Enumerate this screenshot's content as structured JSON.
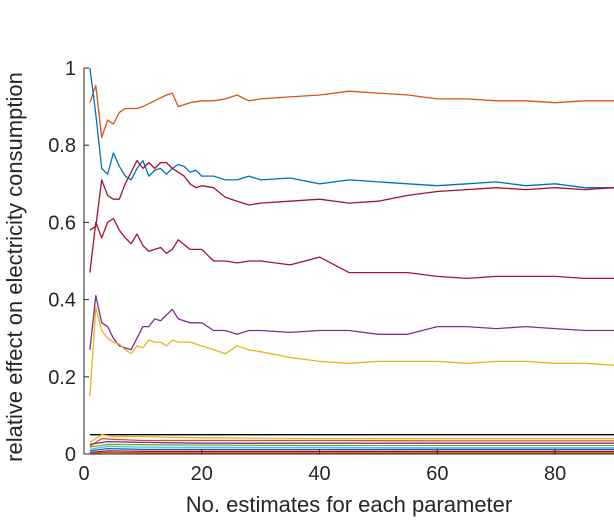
{
  "chart_data": {
    "type": "line",
    "title": "",
    "xlabel": "No. estimates for each parameter",
    "ylabel": "relative effect on electricity consumption",
    "xlim": [
      0,
      90
    ],
    "ylim": [
      0,
      1
    ],
    "xticks": [
      0,
      20,
      40,
      60,
      80
    ],
    "yticks": [
      0,
      0.2,
      0.4,
      0.6,
      0.8,
      1
    ],
    "xtick_labels": [
      "0",
      "20",
      "40",
      "60",
      "80"
    ],
    "ytick_labels": [
      "0",
      "0.2",
      "0.4",
      "0.6",
      "0.8",
      "1"
    ],
    "grid": false,
    "legend": "none",
    "series": [
      {
        "color": "#D95319",
        "x": [
          1,
          2,
          3,
          4,
          5,
          6,
          7,
          8,
          9,
          10,
          12,
          14,
          15,
          16,
          18,
          20,
          22,
          24,
          26,
          28,
          30,
          35,
          40,
          45,
          50,
          55,
          60,
          65,
          70,
          75,
          80,
          85,
          90
        ],
        "y": [
          0.91,
          0.955,
          0.82,
          0.865,
          0.855,
          0.885,
          0.895,
          0.895,
          0.895,
          0.9,
          0.915,
          0.93,
          0.935,
          0.9,
          0.91,
          0.915,
          0.915,
          0.92,
          0.93,
          0.915,
          0.92,
          0.925,
          0.93,
          0.94,
          0.935,
          0.93,
          0.92,
          0.92,
          0.915,
          0.915,
          0.91,
          0.915,
          0.915
        ]
      },
      {
        "color": "#0072BD",
        "x": [
          1,
          2,
          3,
          4,
          5,
          6,
          7,
          8,
          9,
          10,
          11,
          12,
          13,
          14,
          15,
          16,
          17,
          18,
          19,
          20,
          22,
          24,
          26,
          28,
          30,
          35,
          40,
          45,
          50,
          55,
          60,
          65,
          70,
          75,
          80,
          85,
          90
        ],
        "y": [
          1.0,
          0.88,
          0.74,
          0.725,
          0.78,
          0.745,
          0.72,
          0.71,
          0.74,
          0.76,
          0.72,
          0.735,
          0.74,
          0.725,
          0.74,
          0.75,
          0.745,
          0.73,
          0.735,
          0.72,
          0.72,
          0.71,
          0.71,
          0.72,
          0.71,
          0.715,
          0.7,
          0.71,
          0.705,
          0.7,
          0.695,
          0.7,
          0.705,
          0.695,
          0.7,
          0.69,
          0.69
        ]
      },
      {
        "color": "#A2142F",
        "x": [
          1,
          2,
          3,
          4,
          5,
          6,
          7,
          8,
          9,
          10,
          11,
          12,
          13,
          14,
          15,
          16,
          17,
          18,
          19,
          20,
          22,
          24,
          26,
          28,
          30,
          35,
          40,
          45,
          50,
          55,
          60,
          65,
          70,
          75,
          80,
          85,
          90
        ],
        "y": [
          0.58,
          0.59,
          0.71,
          0.67,
          0.66,
          0.66,
          0.7,
          0.73,
          0.76,
          0.74,
          0.755,
          0.74,
          0.755,
          0.755,
          0.74,
          0.73,
          0.72,
          0.7,
          0.69,
          0.695,
          0.69,
          0.665,
          0.655,
          0.645,
          0.65,
          0.655,
          0.66,
          0.65,
          0.655,
          0.67,
          0.68,
          0.685,
          0.69,
          0.685,
          0.69,
          0.685,
          0.69
        ]
      },
      {
        "color": "#A2142F",
        "x": [
          1,
          2,
          3,
          4,
          5,
          6,
          7,
          8,
          9,
          10,
          11,
          12,
          13,
          14,
          15,
          16,
          18,
          20,
          22,
          24,
          26,
          28,
          30,
          35,
          40,
          45,
          50,
          55,
          60,
          65,
          70,
          75,
          80,
          85,
          90
        ],
        "y": [
          0.47,
          0.6,
          0.56,
          0.6,
          0.61,
          0.58,
          0.56,
          0.545,
          0.57,
          0.54,
          0.525,
          0.53,
          0.535,
          0.52,
          0.53,
          0.555,
          0.53,
          0.53,
          0.5,
          0.5,
          0.495,
          0.5,
          0.5,
          0.49,
          0.51,
          0.47,
          0.47,
          0.47,
          0.46,
          0.455,
          0.46,
          0.46,
          0.46,
          0.455,
          0.455
        ]
      },
      {
        "color": "#7E2F8E",
        "x": [
          1,
          2,
          3,
          4,
          5,
          6,
          7,
          8,
          9,
          10,
          11,
          12,
          13,
          14,
          15,
          16,
          18,
          20,
          22,
          24,
          26,
          28,
          30,
          35,
          40,
          45,
          50,
          55,
          60,
          65,
          70,
          75,
          80,
          85,
          90
        ],
        "y": [
          0.27,
          0.41,
          0.34,
          0.33,
          0.3,
          0.28,
          0.275,
          0.27,
          0.3,
          0.33,
          0.33,
          0.35,
          0.345,
          0.36,
          0.375,
          0.35,
          0.34,
          0.34,
          0.32,
          0.32,
          0.31,
          0.32,
          0.32,
          0.315,
          0.32,
          0.32,
          0.31,
          0.31,
          0.33,
          0.33,
          0.325,
          0.33,
          0.325,
          0.32,
          0.32
        ]
      },
      {
        "color": "#EDB120",
        "x": [
          1,
          2,
          3,
          4,
          5,
          6,
          7,
          8,
          9,
          10,
          11,
          12,
          13,
          14,
          15,
          16,
          18,
          20,
          22,
          24,
          26,
          28,
          30,
          35,
          40,
          45,
          50,
          55,
          60,
          65,
          70,
          75,
          80,
          85,
          90
        ],
        "y": [
          0.15,
          0.38,
          0.32,
          0.3,
          0.29,
          0.285,
          0.27,
          0.26,
          0.28,
          0.275,
          0.295,
          0.29,
          0.29,
          0.28,
          0.295,
          0.29,
          0.29,
          0.28,
          0.27,
          0.26,
          0.28,
          0.27,
          0.265,
          0.25,
          0.24,
          0.235,
          0.24,
          0.24,
          0.24,
          0.235,
          0.24,
          0.24,
          0.235,
          0.235,
          0.23
        ]
      },
      {
        "color": "#000000",
        "x": [
          1,
          10,
          20,
          40,
          60,
          80,
          90
        ],
        "y": [
          0.05,
          0.05,
          0.05,
          0.05,
          0.05,
          0.05,
          0.05
        ]
      },
      {
        "color": "#EDB120",
        "x": [
          1,
          3,
          5,
          10,
          20,
          40,
          60,
          80,
          90
        ],
        "y": [
          0.03,
          0.05,
          0.045,
          0.045,
          0.042,
          0.04,
          0.04,
          0.04,
          0.04
        ]
      },
      {
        "color": "#D95319",
        "x": [
          1,
          3,
          5,
          10,
          20,
          40,
          60,
          80,
          90
        ],
        "y": [
          0.02,
          0.04,
          0.038,
          0.035,
          0.035,
          0.035,
          0.034,
          0.034,
          0.034
        ]
      },
      {
        "color": "#7E2F8E",
        "x": [
          1,
          4,
          10,
          20,
          40,
          60,
          80,
          90
        ],
        "y": [
          0.025,
          0.032,
          0.03,
          0.028,
          0.028,
          0.028,
          0.028,
          0.028
        ]
      },
      {
        "color": "#77AC30",
        "x": [
          1,
          4,
          10,
          20,
          40,
          60,
          80,
          90
        ],
        "y": [
          0.018,
          0.025,
          0.024,
          0.023,
          0.022,
          0.022,
          0.022,
          0.022
        ]
      },
      {
        "color": "#4DBEEE",
        "x": [
          1,
          4,
          10,
          20,
          40,
          60,
          80,
          90
        ],
        "y": [
          0.012,
          0.02,
          0.018,
          0.017,
          0.017,
          0.016,
          0.016,
          0.016
        ]
      },
      {
        "color": "#0072BD",
        "x": [
          1,
          4,
          10,
          20,
          40,
          60,
          80,
          90
        ],
        "y": [
          0.008,
          0.014,
          0.012,
          0.012,
          0.012,
          0.012,
          0.012,
          0.012
        ]
      },
      {
        "color": "#A2142F",
        "x": [
          1,
          4,
          10,
          20,
          40,
          60,
          80,
          90
        ],
        "y": [
          0.004,
          0.008,
          0.007,
          0.007,
          0.007,
          0.007,
          0.007,
          0.007
        ]
      },
      {
        "color": "#D95319",
        "x": [
          1,
          4,
          10,
          20,
          40,
          60,
          80,
          90
        ],
        "y": [
          0.002,
          0.004,
          0.003,
          0.003,
          0.003,
          0.003,
          0.003,
          0.003
        ]
      }
    ]
  }
}
